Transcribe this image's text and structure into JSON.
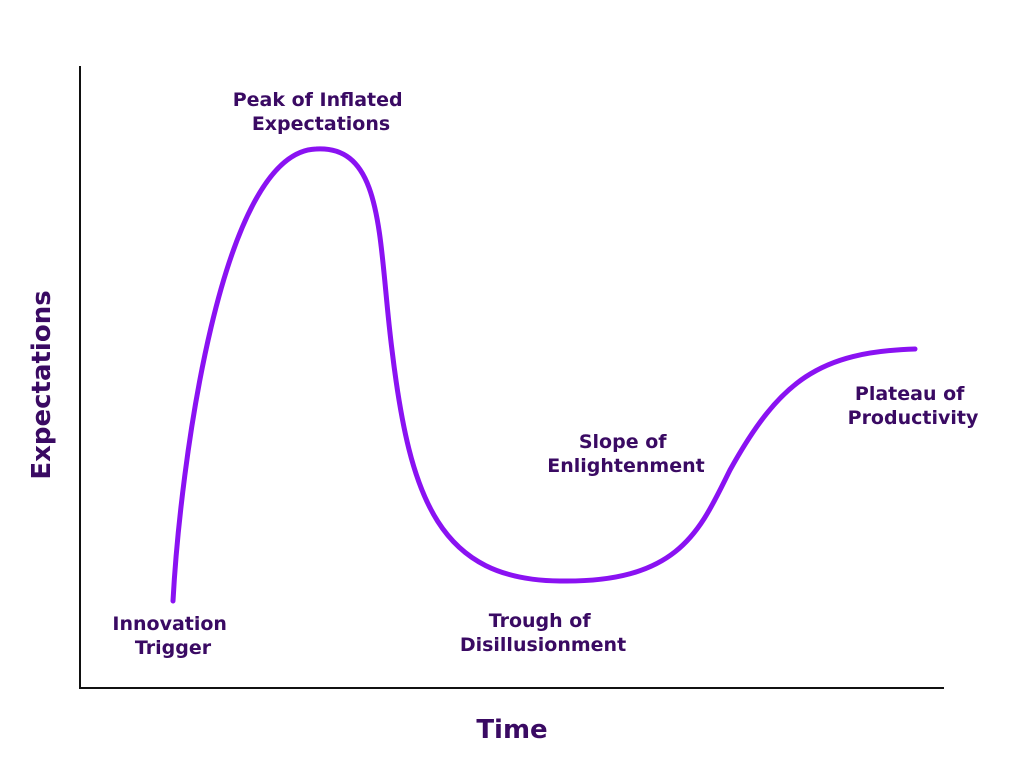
{
  "colors": {
    "curve": "#8A12F2",
    "text": "#3A0A63",
    "axis": "#111111",
    "background": "#FFFFFF"
  },
  "axes": {
    "x_title": "Time",
    "y_title": "Expectations"
  },
  "phases": [
    {
      "key": "innovation",
      "lines": [
        "Innovation",
        "Trigger"
      ]
    },
    {
      "key": "peak",
      "lines": [
        "Peak of Inflated",
        "Expectations"
      ]
    },
    {
      "key": "trough",
      "lines": [
        "Trough of",
        "Disillusionment"
      ]
    },
    {
      "key": "slope",
      "lines": [
        "Slope of",
        "Enlightenment"
      ]
    },
    {
      "key": "plateau",
      "lines": [
        "Plateau of",
        "Productivity"
      ]
    }
  ]
}
